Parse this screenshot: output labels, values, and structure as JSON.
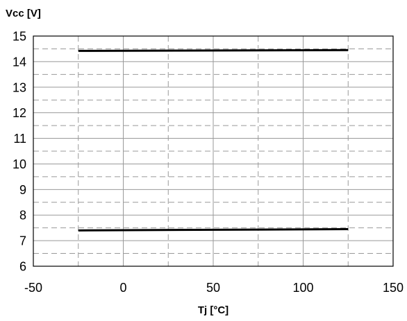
{
  "chart_data": {
    "type": "line",
    "title": "",
    "xlabel": "Tj [°C]",
    "ylabel": "Vcc [V]",
    "xlim": [
      -50,
      150
    ],
    "ylim": [
      6,
      15
    ],
    "xticks": [
      -50,
      0,
      50,
      100,
      150
    ],
    "yticks": [
      6,
      7,
      8,
      9,
      10,
      11,
      12,
      13,
      14,
      15
    ],
    "x_minor_step": 25,
    "y_minor_step": 0.5,
    "grid": true,
    "legend": "none",
    "series": [
      {
        "values_x": [
          -25,
          125
        ],
        "values_y": [
          14.42,
          14.45
        ]
      },
      {
        "values_x": [
          -25,
          125
        ],
        "values_y": [
          7.4,
          7.45
        ]
      }
    ],
    "colors": {
      "line": "#000000",
      "major_grid": "#999999",
      "minor_grid": "#999999",
      "frame": "#000000"
    }
  }
}
